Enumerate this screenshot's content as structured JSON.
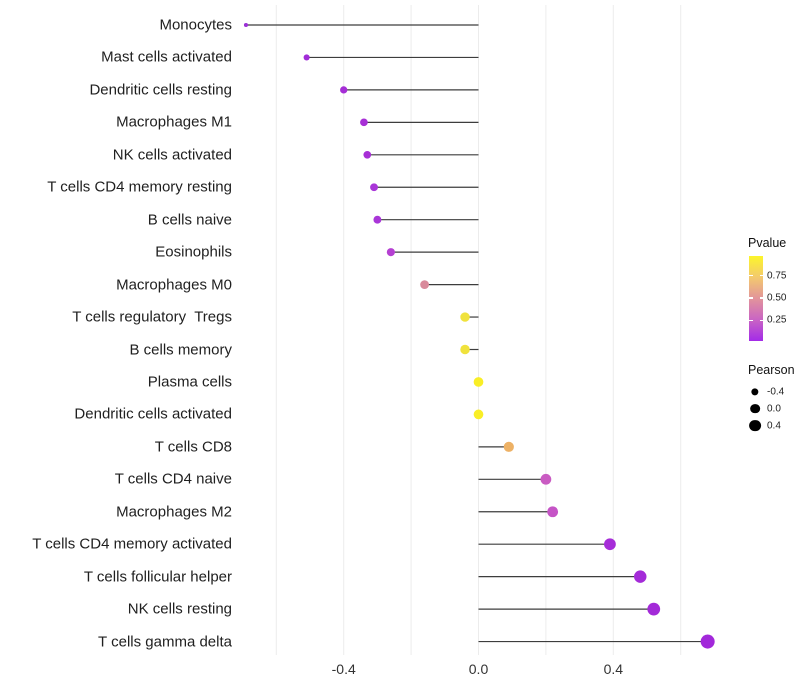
{
  "chart_data": {
    "type": "lollipop",
    "orientation": "horizontal",
    "title": "",
    "xlabel": "",
    "ylabel": "",
    "value_field": "Pearson",
    "color_field": "Pvalue",
    "x_axis": {
      "tick_labels": [
        "-0.4",
        "0.0",
        "0.4"
      ],
      "tick_values": [
        -0.4,
        0.0,
        0.4
      ],
      "gridline_values": [
        -0.6,
        -0.4,
        -0.2,
        0.0,
        0.2,
        0.4,
        0.6
      ],
      "range": [
        -0.73,
        0.72
      ],
      "grid": true
    },
    "points": [
      {
        "label": "Monocytes",
        "pearson": -0.69,
        "pvalue": 0.08,
        "color": "#9B30D6"
      },
      {
        "label": "Mast cells activated",
        "pearson": -0.51,
        "pvalue": 0.08,
        "color": "#A12CD8"
      },
      {
        "label": "Dendritic cells resting",
        "pearson": -0.4,
        "pvalue": 0.1,
        "color": "#A52ED6"
      },
      {
        "label": "Macrophages M1",
        "pearson": -0.34,
        "pvalue": 0.1,
        "color": "#A72FD6"
      },
      {
        "label": "NK cells activated",
        "pearson": -0.33,
        "pvalue": 0.1,
        "color": "#A72FD6"
      },
      {
        "label": "T cells CD4 memory resting",
        "pearson": -0.31,
        "pvalue": 0.12,
        "color": "#A936D8"
      },
      {
        "label": "B cells naive",
        "pearson": -0.3,
        "pvalue": 0.12,
        "color": "#A936D8"
      },
      {
        "label": "Eosinophils",
        "pearson": -0.26,
        "pvalue": 0.2,
        "color": "#B540D2"
      },
      {
        "label": "Macrophages M0",
        "pearson": -0.16,
        "pvalue": 0.5,
        "color": "#D98A9B"
      },
      {
        "label": "T cells regulatory  Tregs",
        "pearson": -0.04,
        "pvalue": 0.85,
        "color": "#F0E23C"
      },
      {
        "label": "B cells memory",
        "pearson": -0.04,
        "pvalue": 0.85,
        "color": "#F0E23C"
      },
      {
        "label": "Plasma cells",
        "pearson": 0.0,
        "pvalue": 0.95,
        "color": "#F9EE26"
      },
      {
        "label": "Dendritic cells activated",
        "pearson": 0.0,
        "pvalue": 0.95,
        "color": "#F9EE26"
      },
      {
        "label": "T cells CD8",
        "pearson": 0.09,
        "pvalue": 0.62,
        "color": "#EDB165"
      },
      {
        "label": "T cells CD4 naive",
        "pearson": 0.2,
        "pvalue": 0.33,
        "color": "#C95BC2"
      },
      {
        "label": "Macrophages M2",
        "pearson": 0.22,
        "pvalue": 0.33,
        "color": "#C554C6"
      },
      {
        "label": "T cells CD4 memory activated",
        "pearson": 0.39,
        "pvalue": 0.08,
        "color": "#A62DD8"
      },
      {
        "label": "T cells follicular helper",
        "pearson": 0.48,
        "pvalue": 0.06,
        "color": "#A42BD8"
      },
      {
        "label": "NK cells resting",
        "pearson": 0.52,
        "pvalue": 0.06,
        "color": "#A32AD8"
      },
      {
        "label": "T cells gamma delta",
        "pearson": 0.68,
        "pvalue": 0.05,
        "color": "#A228DA"
      }
    ],
    "legend_position": "right"
  },
  "legend": {
    "pvalue": {
      "title": "Pvalue",
      "ticks": [
        {
          "label": "0.75",
          "value": 0.75
        },
        {
          "label": "0.50",
          "value": 0.5
        },
        {
          "label": "0.25",
          "value": 0.25
        }
      ],
      "gradient_top_to_bottom": [
        "#FCF52A",
        "#F3C96E",
        "#E2949B",
        "#C964C4",
        "#A32BE8"
      ],
      "domain": [
        0.02,
        0.97
      ]
    },
    "pearson": {
      "title": "Pearson",
      "items": [
        {
          "label": "-0.4",
          "value": -0.4
        },
        {
          "label": "0.0",
          "value": 0.0
        },
        {
          "label": "0.4",
          "value": 0.4
        }
      ],
      "dot_color": "#000000"
    }
  },
  "style": {
    "background": "#FFFFFF",
    "grid_color": "#ECECEC",
    "stem_color": "#3D3D3D",
    "axis_text_color": "#333333",
    "label_text_color": "#1F1F1F"
  }
}
